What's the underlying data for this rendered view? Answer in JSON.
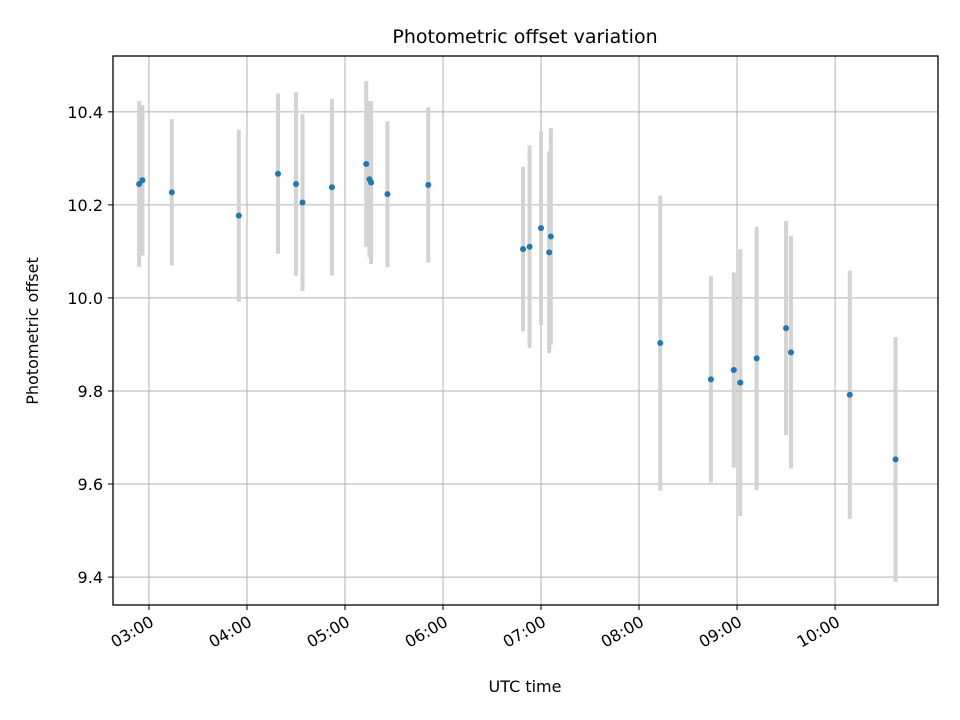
{
  "chart_data": {
    "type": "scatter",
    "title": "Photometric offset variation",
    "xlabel": "UTC time",
    "ylabel": "Photometric offset",
    "grid": true,
    "xlim": [
      "02:38",
      "11:03"
    ],
    "ylim": [
      9.34,
      10.52
    ],
    "x_ticks": [
      "03:00",
      "04:00",
      "05:00",
      "06:00",
      "07:00",
      "08:00",
      "09:00",
      "10:00"
    ],
    "y_ticks": [
      9.4,
      9.6,
      9.8,
      10.0,
      10.2,
      10.4
    ],
    "marker_color": "#1f77b4",
    "errorbar_color": "#d3d3d3",
    "points": [
      {
        "x": "02:54",
        "y": 10.245,
        "err": 0.178
      },
      {
        "x": "02:56",
        "y": 10.253,
        "err": 0.162
      },
      {
        "x": "03:14",
        "y": 10.227,
        "err": 0.157
      },
      {
        "x": "03:55",
        "y": 10.177,
        "err": 0.185
      },
      {
        "x": "04:19",
        "y": 10.267,
        "err": 0.172
      },
      {
        "x": "04:30",
        "y": 10.245,
        "err": 0.197
      },
      {
        "x": "04:34",
        "y": 10.205,
        "err": 0.19
      },
      {
        "x": "04:52",
        "y": 10.238,
        "err": 0.19
      },
      {
        "x": "05:13",
        "y": 10.288,
        "err": 0.178
      },
      {
        "x": "05:15",
        "y": 10.255,
        "err": 0.168
      },
      {
        "x": "05:16",
        "y": 10.248,
        "err": 0.175
      },
      {
        "x": "05:26",
        "y": 10.223,
        "err": 0.157
      },
      {
        "x": "05:51",
        "y": 10.243,
        "err": 0.167
      },
      {
        "x": "06:49",
        "y": 10.105,
        "err": 0.177
      },
      {
        "x": "06:53",
        "y": 10.11,
        "err": 0.218
      },
      {
        "x": "07:00",
        "y": 10.15,
        "err": 0.208
      },
      {
        "x": "07:05",
        "y": 10.098,
        "err": 0.217
      },
      {
        "x": "07:06",
        "y": 10.132,
        "err": 0.233
      },
      {
        "x": "08:13",
        "y": 9.903,
        "err": 0.317
      },
      {
        "x": "08:44",
        "y": 9.825,
        "err": 0.222
      },
      {
        "x": "08:58",
        "y": 9.845,
        "err": 0.21
      },
      {
        "x": "09:02",
        "y": 9.818,
        "err": 0.287
      },
      {
        "x": "09:12",
        "y": 9.87,
        "err": 0.283
      },
      {
        "x": "09:30",
        "y": 9.935,
        "err": 0.23
      },
      {
        "x": "09:33",
        "y": 9.883,
        "err": 0.25
      },
      {
        "x": "10:09",
        "y": 9.792,
        "err": 0.267
      },
      {
        "x": "10:37",
        "y": 9.653,
        "err": 0.263
      }
    ]
  }
}
